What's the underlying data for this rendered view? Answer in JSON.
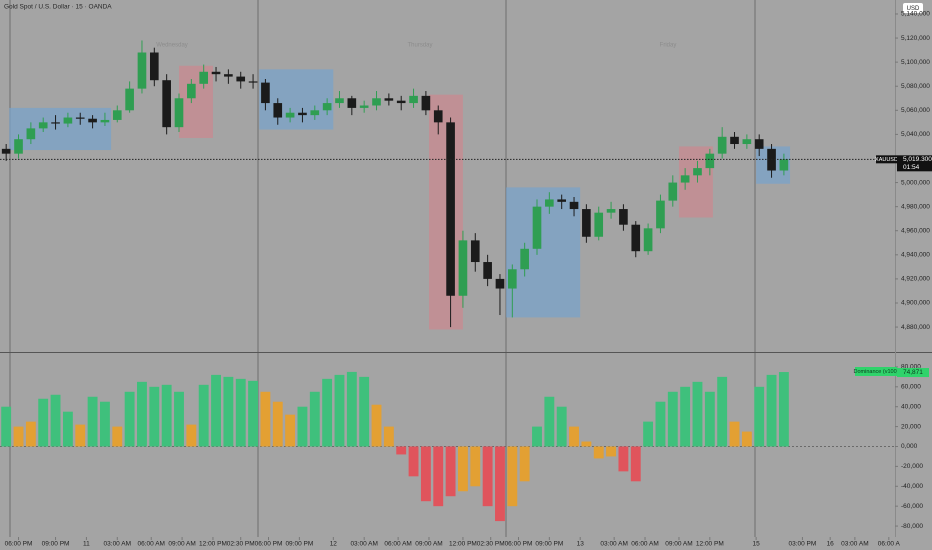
{
  "header": {
    "title": "Gold Spot / U.S. Dollar · 15 · OANDA",
    "currency": "USD"
  },
  "chart_data": [
    {
      "type": "candlestick",
      "symbol": "XAUUSD",
      "countdown": "01:54",
      "session_labels": [
        "Wednesday",
        "Thursday",
        "Friday"
      ],
      "up_color": "#2f9e52",
      "down_color": "#1b1b1b",
      "xlim": [
        0,
        290
      ],
      "ylim": [
        4859300,
        5151600
      ],
      "yticks": [
        {
          "value": 5140000,
          "label": "5,140,000"
        },
        {
          "value": 5120000,
          "label": "5,120,000"
        },
        {
          "value": 5100000,
          "label": "5,100,000"
        },
        {
          "value": 5080000,
          "label": "5,080,000"
        },
        {
          "value": 5060000,
          "label": "5,060,000"
        },
        {
          "value": 5040000,
          "label": "5,040,000"
        },
        {
          "value": 5020000,
          "label": "5,020,000"
        },
        {
          "value": 5000000,
          "label": "5,000,000"
        },
        {
          "value": 4980000,
          "label": "4,980,000"
        },
        {
          "value": 4960000,
          "label": "4,960,000"
        },
        {
          "value": 4940000,
          "label": "4,940,000"
        },
        {
          "value": 4920000,
          "label": "4,920,000"
        },
        {
          "value": 4900000,
          "label": "4,900,000"
        },
        {
          "value": 4880000,
          "label": "4,880,000"
        }
      ],
      "price_label": {
        "value": 5019300,
        "label": "5,019.300"
      },
      "zones": [
        {
          "x": [
            3,
            36
          ],
          "y": [
            5027000,
            5062000
          ],
          "color": "#7aa3c9"
        },
        {
          "x": [
            58,
            69
          ],
          "y": [
            5037000,
            5097000
          ],
          "color": "#c98a90"
        },
        {
          "x": [
            84,
            108
          ],
          "y": [
            5044000,
            5094000
          ],
          "color": "#7aa3c9"
        },
        {
          "x": [
            139,
            150
          ],
          "y": [
            4878000,
            5073000
          ],
          "color": "#c98a90"
        },
        {
          "x": [
            164,
            188
          ],
          "y": [
            4888000,
            4996000
          ],
          "color": "#7aa3c9"
        },
        {
          "x": [
            220,
            231
          ],
          "y": [
            4971000,
            5030000
          ],
          "color": "#c98a90"
        },
        {
          "x": [
            245,
            256
          ],
          "y": [
            4999000,
            5030000
          ],
          "color": "#7aa3c9"
        }
      ],
      "x": [
        2,
        6,
        10,
        14,
        18,
        22,
        26,
        30,
        34,
        38,
        42,
        46,
        50,
        54,
        58,
        62,
        66,
        70,
        74,
        78,
        82,
        86,
        90,
        94,
        98,
        102,
        106,
        110,
        114,
        118,
        122,
        126,
        130,
        134,
        138,
        142,
        146,
        150,
        154,
        158,
        162,
        166,
        170,
        174,
        178,
        182,
        186,
        190,
        194,
        198,
        202,
        206,
        210,
        214,
        218,
        222,
        226,
        230,
        234,
        238,
        242,
        246,
        250,
        254
      ],
      "open": [
        5028000,
        5024000,
        5036000,
        5045000,
        5050000,
        5049000,
        5054000,
        5053000,
        5050000,
        5052000,
        5060000,
        5078000,
        5108000,
        5085000,
        5046000,
        5070000,
        5082000,
        5092000,
        5090000,
        5088000,
        5084000,
        5083000,
        5066000,
        5054000,
        5058000,
        5056000,
        5060000,
        5066000,
        5070000,
        5062000,
        5064000,
        5070000,
        5068000,
        5066000,
        5072000,
        5060000,
        5050000,
        4906000,
        4952000,
        4934000,
        4920000,
        4912000,
        4928000,
        4945000,
        4980000,
        4986000,
        4984000,
        4978000,
        4955000,
        4975000,
        4978000,
        4965000,
        4943000,
        4962000,
        4985000,
        5000000,
        5006000,
        5012000,
        5024000,
        5038000,
        5032000,
        5036000,
        5028000,
        5010000
      ],
      "high": [
        5032000,
        5040000,
        5050000,
        5054000,
        5056000,
        5058000,
        5058000,
        5056000,
        5058000,
        5064000,
        5084000,
        5118000,
        5112000,
        5090000,
        5074000,
        5086000,
        5098000,
        5096000,
        5094000,
        5092000,
        5090000,
        5086000,
        5070000,
        5062000,
        5062000,
        5064000,
        5070000,
        5076000,
        5072000,
        5068000,
        5076000,
        5074000,
        5072000,
        5078000,
        5076000,
        5064000,
        5054000,
        4960000,
        4958000,
        4940000,
        4924000,
        4932000,
        4950000,
        4986000,
        4992000,
        4990000,
        4988000,
        4982000,
        4980000,
        4984000,
        4982000,
        4968000,
        4966000,
        4990000,
        5006000,
        5012000,
        5018000,
        5028000,
        5046000,
        5042000,
        5040000,
        5040000,
        5032000,
        5024000
      ],
      "low": [
        5018000,
        5020000,
        5032000,
        5042000,
        5044000,
        5046000,
        5048000,
        5045000,
        5047000,
        5050000,
        5058000,
        5074000,
        5080000,
        5040000,
        5042000,
        5066000,
        5078000,
        5084000,
        5082000,
        5078000,
        5078000,
        5060000,
        5048000,
        5050000,
        5050000,
        5052000,
        5056000,
        5062000,
        5056000,
        5058000,
        5060000,
        5064000,
        5060000,
        5062000,
        5056000,
        5040000,
        4880000,
        4896000,
        4926000,
        4914000,
        4890000,
        4888000,
        4922000,
        4940000,
        4974000,
        4978000,
        4972000,
        4950000,
        4952000,
        4970000,
        4960000,
        4938000,
        4940000,
        4958000,
        4980000,
        4994000,
        5000000,
        5006000,
        5020000,
        5028000,
        5028000,
        5022000,
        5004000,
        5006000
      ],
      "close": [
        5024000,
        5036000,
        5045000,
        5050000,
        5049000,
        5054000,
        5053000,
        5050000,
        5052000,
        5060000,
        5078000,
        5108000,
        5085000,
        5046000,
        5070000,
        5082000,
        5092000,
        5090000,
        5088000,
        5084000,
        5083000,
        5066000,
        5054000,
        5058000,
        5056000,
        5060000,
        5066000,
        5070000,
        5062000,
        5064000,
        5070000,
        5068000,
        5066000,
        5072000,
        5060000,
        5050000,
        4906000,
        4952000,
        4934000,
        4920000,
        4912000,
        4928000,
        4945000,
        4980000,
        4986000,
        4984000,
        4978000,
        4955000,
        4975000,
        4978000,
        4965000,
        4943000,
        4962000,
        4985000,
        5000000,
        5006000,
        5012000,
        5024000,
        5038000,
        5032000,
        5036000,
        5028000,
        5010000,
        5019300
      ]
    },
    {
      "type": "histogram",
      "legend": "Dominance (v100)",
      "last_label": {
        "value": 74871,
        "label": "74,871"
      },
      "xlim": [
        0,
        290
      ],
      "ylim": [
        -91000,
        94000
      ],
      "yticks": [
        {
          "value": 80000,
          "label": "80,000"
        },
        {
          "value": 60000,
          "label": "60,000"
        },
        {
          "value": 40000,
          "label": "40,000"
        },
        {
          "value": 20000,
          "label": "20,000"
        },
        {
          "value": 0,
          "label": "0,000"
        },
        {
          "value": -20000,
          "label": "-20,000"
        },
        {
          "value": -40000,
          "label": "-40,000"
        },
        {
          "value": -60000,
          "label": "-60,000"
        },
        {
          "value": -80000,
          "label": "-80,000"
        }
      ],
      "xticks": [
        {
          "value": 6,
          "label": "06:00 PM"
        },
        {
          "value": 18,
          "label": "09:00 PM"
        },
        {
          "value": 28,
          "label": "11"
        },
        {
          "value": 38,
          "label": "03:00 AM"
        },
        {
          "value": 49,
          "label": "06:00 AM"
        },
        {
          "value": 59,
          "label": "09:00 AM"
        },
        {
          "value": 69,
          "label": "12:00 PM"
        },
        {
          "value": 78,
          "label": "02:30 PM"
        },
        {
          "value": 87,
          "label": "06:00 PM"
        },
        {
          "value": 97,
          "label": "09:00 PM"
        },
        {
          "value": 108,
          "label": "12"
        },
        {
          "value": 118,
          "label": "03:00 AM"
        },
        {
          "value": 129,
          "label": "06:00 AM"
        },
        {
          "value": 139,
          "label": "09:00 AM"
        },
        {
          "value": 150,
          "label": "12:00 PM"
        },
        {
          "value": 159,
          "label": "02:30 PM"
        },
        {
          "value": 168,
          "label": "06:00 PM"
        },
        {
          "value": 178,
          "label": "09:00 PM"
        },
        {
          "value": 188,
          "label": "13"
        },
        {
          "value": 199,
          "label": "03:00 AM"
        },
        {
          "value": 209,
          "label": "06:00 AM"
        },
        {
          "value": 220,
          "label": "09:00 AM"
        },
        {
          "value": 230,
          "label": "12:00 PM"
        },
        {
          "value": 245,
          "label": "15"
        },
        {
          "value": 260,
          "label": "03:00 PM"
        },
        {
          "value": 269,
          "label": "16"
        },
        {
          "value": 277,
          "label": "03:00 AM"
        },
        {
          "value": 288,
          "label": "06:00 A"
        }
      ],
      "x": [
        2,
        6,
        10,
        14,
        18,
        22,
        26,
        30,
        34,
        38,
        42,
        46,
        50,
        54,
        58,
        62,
        66,
        70,
        74,
        78,
        82,
        86,
        90,
        94,
        98,
        102,
        106,
        110,
        114,
        118,
        122,
        126,
        130,
        134,
        138,
        142,
        146,
        150,
        154,
        158,
        162,
        166,
        170,
        174,
        178,
        182,
        186,
        190,
        194,
        198,
        202,
        206,
        210,
        214,
        218,
        222,
        226,
        230,
        234,
        238,
        242,
        246,
        250,
        254
      ],
      "values": [
        40000,
        20000,
        25000,
        48000,
        52000,
        35000,
        22000,
        50000,
        45000,
        20000,
        55000,
        65000,
        60000,
        62000,
        55000,
        22000,
        62000,
        72000,
        70000,
        68000,
        66000,
        55000,
        45000,
        32000,
        40000,
        55000,
        68000,
        72000,
        75000,
        70000,
        42000,
        20000,
        -8000,
        -30000,
        -55000,
        -60000,
        -50000,
        -45000,
        -40000,
        -60000,
        -75000,
        -60000,
        -35000,
        20000,
        50000,
        40000,
        20000,
        5000,
        -12000,
        -10000,
        -25000,
        -35000,
        25000,
        45000,
        55000,
        60000,
        65000,
        55000,
        70000,
        25000,
        15000,
        60000,
        72000,
        74871
      ],
      "colors": [
        "#3fc07c",
        "#e3a033",
        "#e3a033",
        "#3fc07c",
        "#3fc07c",
        "#3fc07c",
        "#e3a033",
        "#3fc07c",
        "#3fc07c",
        "#e3a033",
        "#3fc07c",
        "#3fc07c",
        "#3fc07c",
        "#3fc07c",
        "#3fc07c",
        "#e3a033",
        "#3fc07c",
        "#3fc07c",
        "#3fc07c",
        "#3fc07c",
        "#3fc07c",
        "#e3a033",
        "#e3a033",
        "#e3a033",
        "#3fc07c",
        "#3fc07c",
        "#3fc07c",
        "#3fc07c",
        "#3fc07c",
        "#3fc07c",
        "#e3a033",
        "#e3a033",
        "#e0545c",
        "#e0545c",
        "#e0545c",
        "#e0545c",
        "#e0545c",
        "#e3a033",
        "#e3a033",
        "#e0545c",
        "#e0545c",
        "#e3a033",
        "#e3a033",
        "#3fc07c",
        "#3fc07c",
        "#3fc07c",
        "#e3a033",
        "#e3a033",
        "#e3a033",
        "#e3a033",
        "#e0545c",
        "#e0545c",
        "#3fc07c",
        "#3fc07c",
        "#3fc07c",
        "#3fc07c",
        "#3fc07c",
        "#3fc07c",
        "#3fc07c",
        "#e3a033",
        "#e3a033",
        "#3fc07c",
        "#3fc07c",
        "#3fc07c"
      ]
    }
  ]
}
